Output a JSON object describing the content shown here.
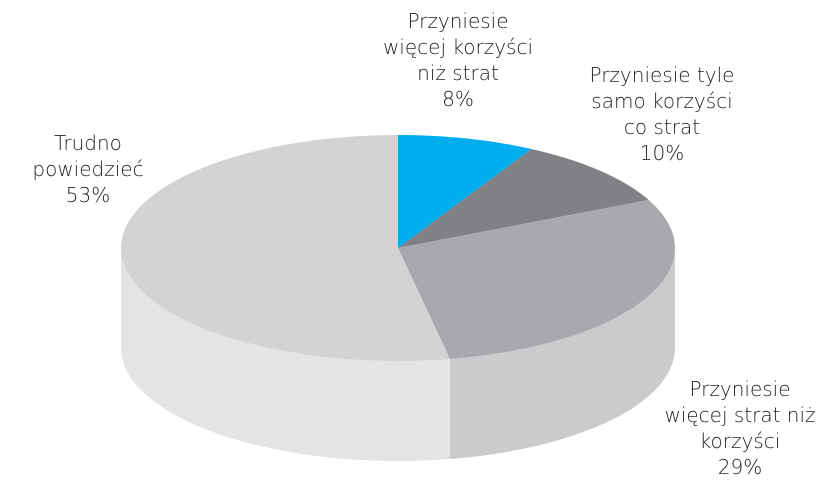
{
  "chart_data": {
    "type": "pie",
    "categories": [
      "Przyniesie więcej korzyści niż strat",
      "Przyniesie tyle samo korzyści co strat",
      "Przyniesie więcej strat niż korzyści",
      "Trudno powiedzieć"
    ],
    "values": [
      8,
      10,
      29,
      53
    ],
    "value_labels": [
      "8%",
      "10%",
      "29%",
      "53%"
    ],
    "colors": [
      "#00aeef",
      "#808184",
      "#a7a9ac",
      "#d1d3d4"
    ]
  }
}
